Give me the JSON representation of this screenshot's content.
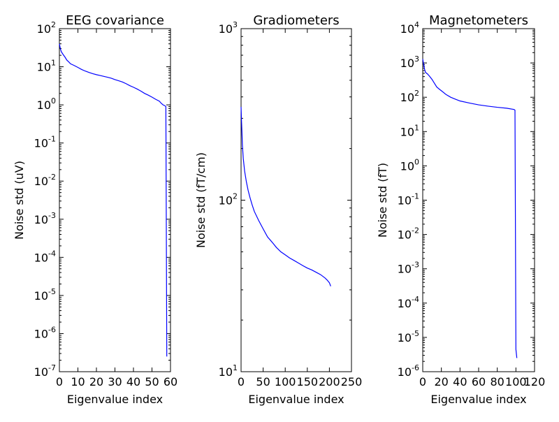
{
  "chart_data": [
    {
      "type": "line",
      "title": "EEG covariance",
      "xlabel": "Eigenvalue index",
      "ylabel": "Noise std (uV)",
      "yscale": "log",
      "xlim": [
        0,
        60
      ],
      "ylim": [
        1e-07,
        100
      ],
      "xticks": [
        "0",
        "10",
        "20",
        "30",
        "40",
        "50",
        "60"
      ],
      "yticks": [
        {
          "base": "10",
          "exp": "2"
        },
        {
          "base": "10",
          "exp": "1"
        },
        {
          "base": "10",
          "exp": "0"
        },
        {
          "base": "10",
          "exp": "-1"
        },
        {
          "base": "10",
          "exp": "-2"
        },
        {
          "base": "10",
          "exp": "-3"
        },
        {
          "base": "10",
          "exp": "-4"
        },
        {
          "base": "10",
          "exp": "-5"
        },
        {
          "base": "10",
          "exp": "-6"
        },
        {
          "base": "10",
          "exp": "-7"
        }
      ],
      "grid": false,
      "color": "#0000ff",
      "x": [
        0,
        0.5,
        1,
        2,
        3,
        4,
        5,
        6,
        8,
        10,
        12,
        14,
        16,
        18,
        20,
        22,
        24,
        26,
        28,
        30,
        32,
        34,
        36,
        38,
        40,
        42,
        44,
        46,
        48,
        50,
        52,
        54,
        55,
        56,
        57,
        57.5,
        58
      ],
      "y": [
        40,
        30,
        25,
        21,
        18,
        15,
        13.5,
        12,
        10.8,
        9.6,
        8.5,
        7.7,
        7.1,
        6.6,
        6.2,
        5.9,
        5.6,
        5.3,
        5.0,
        4.6,
        4.3,
        4.0,
        3.6,
        3.2,
        2.9,
        2.6,
        2.3,
        2.0,
        1.8,
        1.6,
        1.4,
        1.25,
        1.1,
        1.0,
        0.95,
        0.9,
        2.5e-07
      ]
    },
    {
      "type": "line",
      "title": "Gradiometers",
      "xlabel": "Eigenvalue index",
      "ylabel": "Noise std (fT/cm)",
      "yscale": "log",
      "xlim": [
        0,
        250
      ],
      "ylim": [
        10,
        1000
      ],
      "xticks": [
        "0",
        "50",
        "100",
        "150",
        "200",
        "250"
      ],
      "yticks": [
        {
          "base": "10",
          "exp": "3"
        },
        {
          "base": "10",
          "exp": "2"
        },
        {
          "base": "10",
          "exp": "1"
        }
      ],
      "grid": false,
      "color": "#0000ff",
      "x": [
        0,
        1,
        2,
        3,
        5,
        8,
        12,
        16,
        20,
        25,
        30,
        40,
        50,
        60,
        70,
        80,
        90,
        100,
        110,
        120,
        130,
        140,
        150,
        160,
        170,
        180,
        190,
        195,
        200,
        203
      ],
      "y": [
        350,
        290,
        250,
        210,
        175,
        148,
        128,
        114,
        104,
        94,
        86,
        76,
        68,
        61,
        57,
        53,
        50,
        48,
        46,
        44.5,
        43,
        41.5,
        40.2,
        39.2,
        38,
        36.8,
        35.2,
        34.2,
        33,
        31.5
      ]
    },
    {
      "type": "line",
      "title": "Magnetometers",
      "xlabel": "Eigenvalue index",
      "ylabel": "Noise std (fT)",
      "yscale": "log",
      "xlim": [
        0,
        120
      ],
      "ylim": [
        1e-06,
        10000
      ],
      "xticks": [
        "0",
        "20",
        "40",
        "60",
        "80",
        "100",
        "120"
      ],
      "yticks": [
        {
          "base": "10",
          "exp": "4"
        },
        {
          "base": "10",
          "exp": "3"
        },
        {
          "base": "10",
          "exp": "2"
        },
        {
          "base": "10",
          "exp": "1"
        },
        {
          "base": "10",
          "exp": "0"
        },
        {
          "base": "10",
          "exp": "-1"
        },
        {
          "base": "10",
          "exp": "-2"
        },
        {
          "base": "10",
          "exp": "-3"
        },
        {
          "base": "10",
          "exp": "-4"
        },
        {
          "base": "10",
          "exp": "-5"
        },
        {
          "base": "10",
          "exp": "-6"
        }
      ],
      "grid": false,
      "color": "#0000ff",
      "x": [
        0,
        1,
        2,
        3,
        5,
        7,
        10,
        12,
        15,
        18,
        20,
        25,
        30,
        35,
        40,
        50,
        60,
        70,
        80,
        90,
        98,
        99,
        100,
        101
      ],
      "y": [
        1300,
        900,
        650,
        530,
        480,
        420,
        330,
        270,
        200,
        170,
        155,
        120,
        100,
        88,
        78,
        68,
        60,
        55,
        51,
        48,
        44,
        42,
        4.5e-06,
        2.5e-06
      ]
    }
  ]
}
